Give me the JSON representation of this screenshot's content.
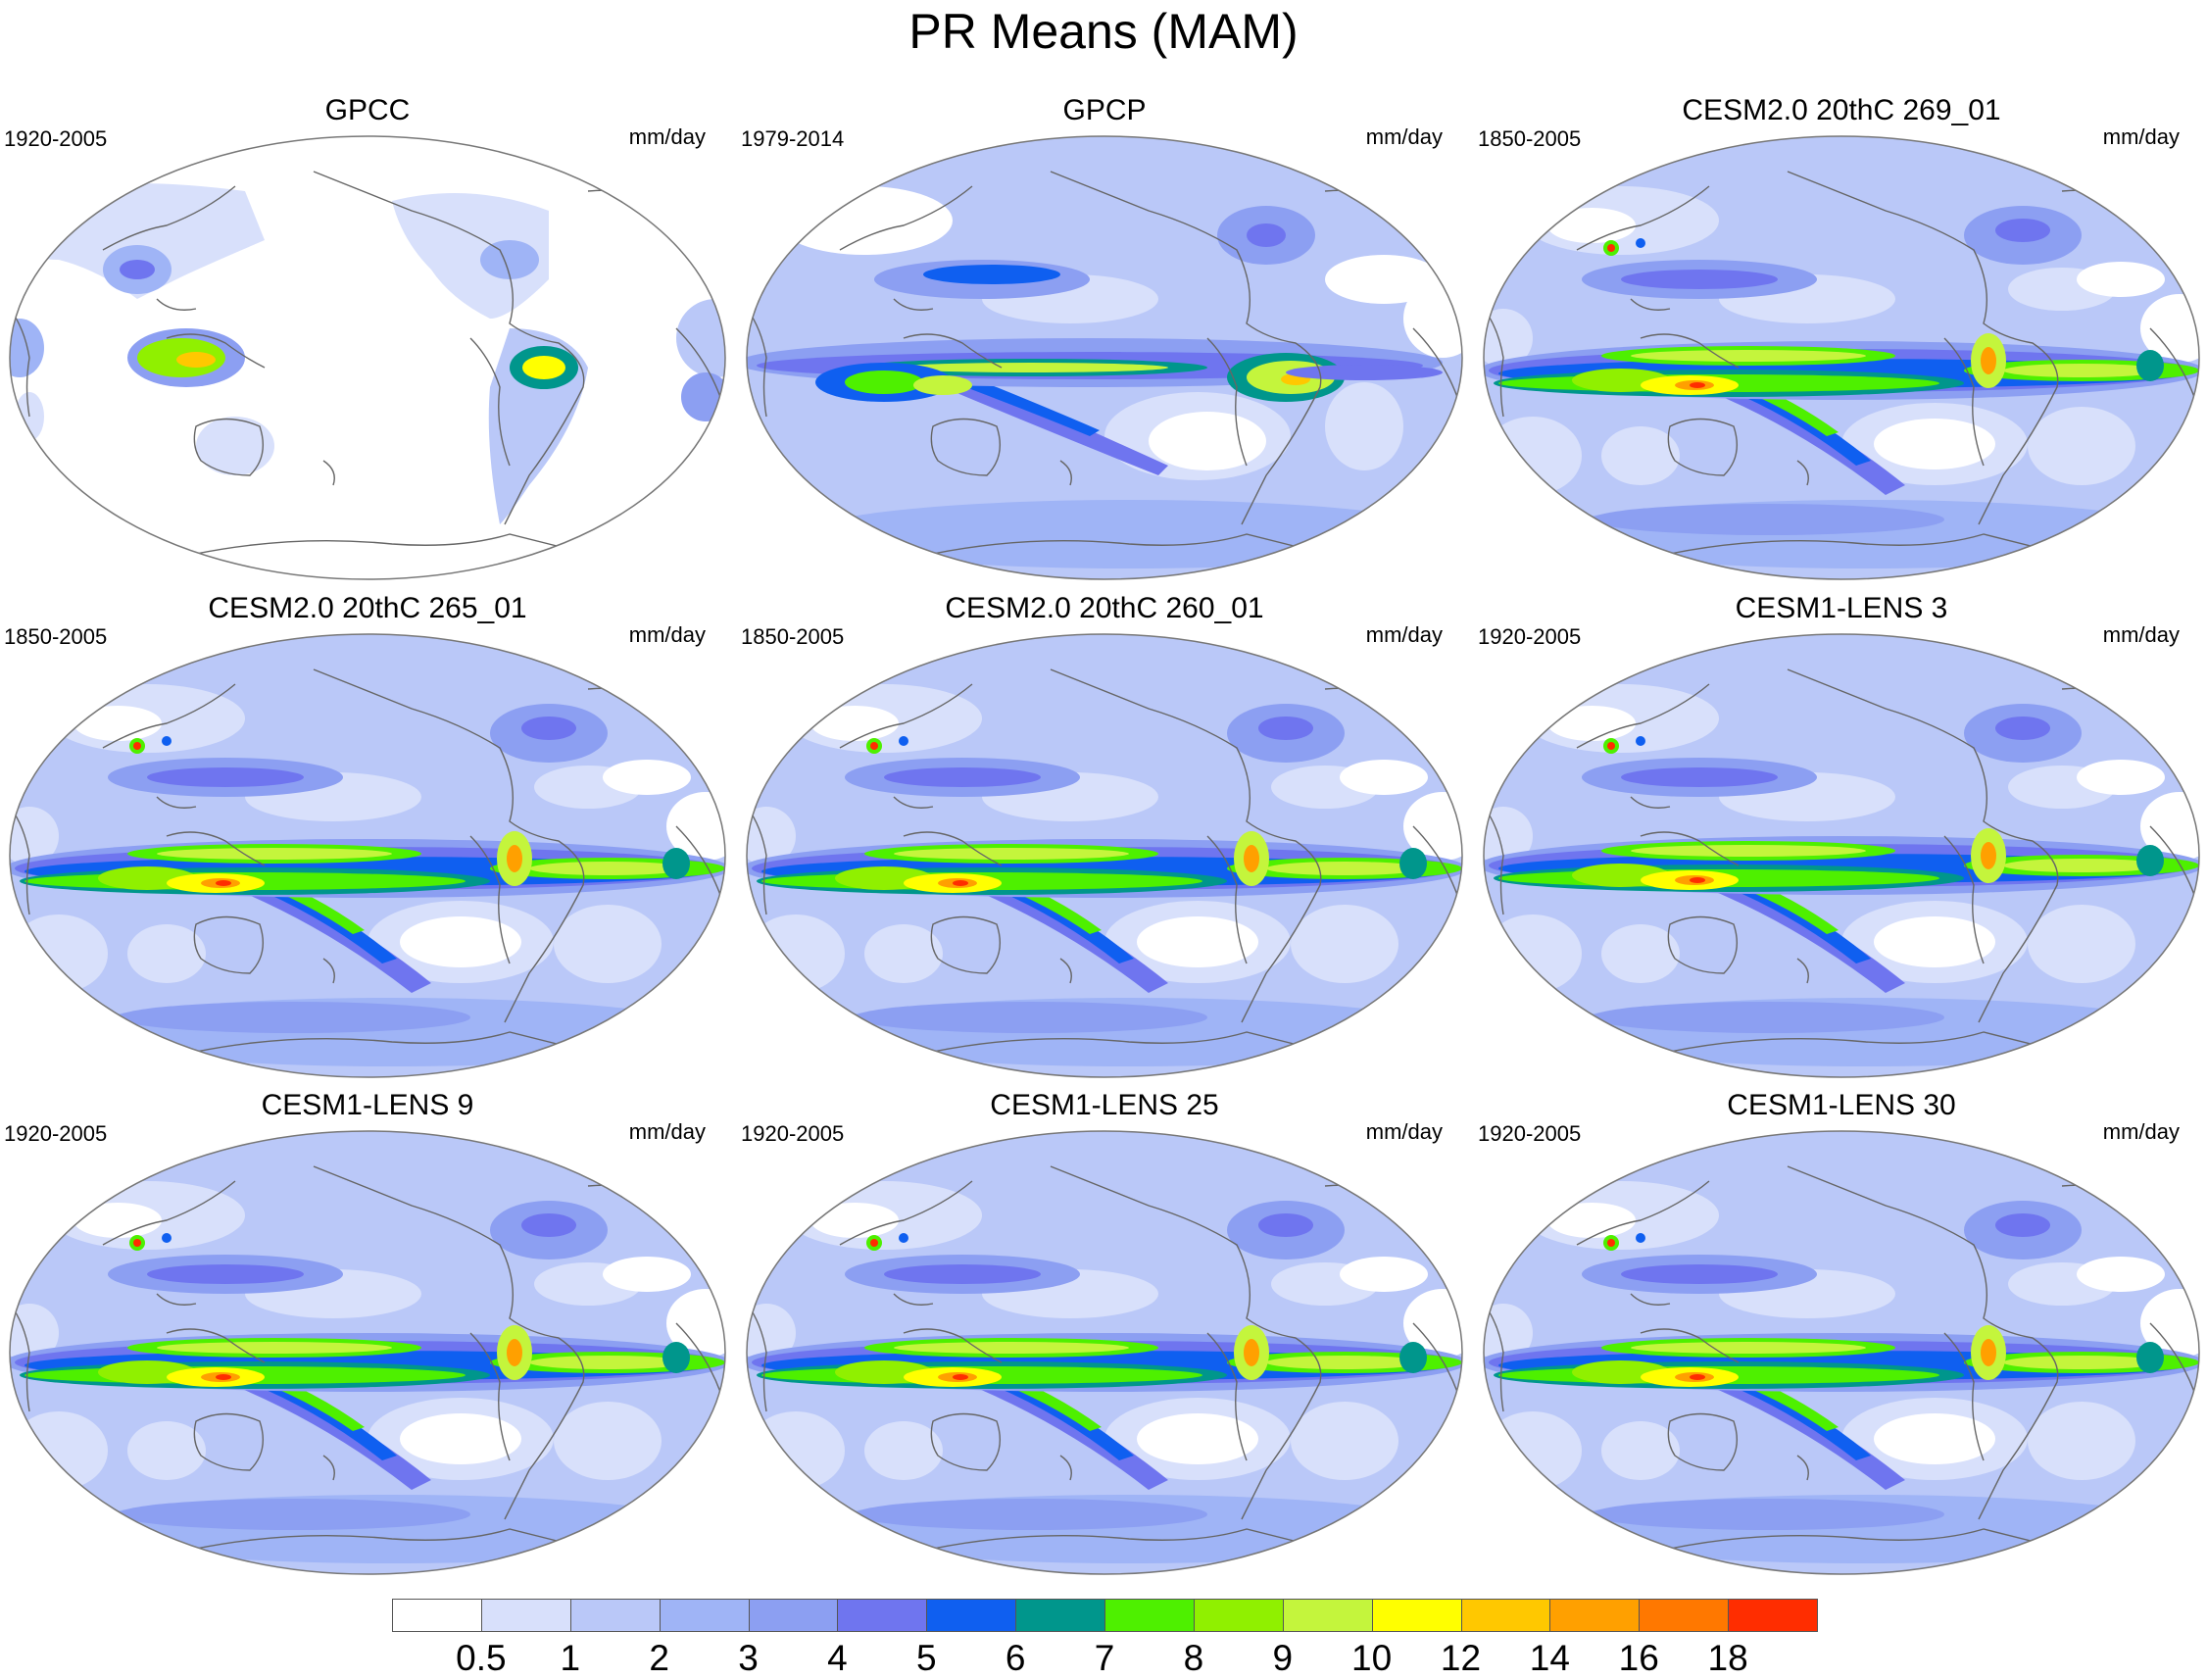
{
  "title": "PR Means (MAM)",
  "units": "mm/day",
  "panels": [
    {
      "title": "GPCC",
      "period": "1920-2005",
      "kind": "gpcc"
    },
    {
      "title": "GPCP",
      "period": "1979-2014",
      "kind": "gpcp"
    },
    {
      "title": "CESM2.0 20thC 269_01",
      "period": "1850-2005",
      "kind": "model2"
    },
    {
      "title": "CESM2.0 20thC 265_01",
      "period": "1850-2005",
      "kind": "model2"
    },
    {
      "title": "CESM2.0 20thC 260_01",
      "period": "1850-2005",
      "kind": "model2"
    },
    {
      "title": "CESM1-LENS 3",
      "period": "1920-2005",
      "kind": "model1"
    },
    {
      "title": "CESM1-LENS 9",
      "period": "1920-2005",
      "kind": "model1"
    },
    {
      "title": "CESM1-LENS 25",
      "period": "1920-2005",
      "kind": "model1"
    },
    {
      "title": "CESM1-LENS 30",
      "period": "1920-2005",
      "kind": "model1"
    }
  ],
  "colorbar": {
    "colors": [
      "#ffffff",
      "#d8e0fb",
      "#bac8f8",
      "#9fb4f6",
      "#8c9ff2",
      "#6f75ef",
      "#0f5ff0",
      "#00968c",
      "#4ef000",
      "#90f000",
      "#c4f53c",
      "#ffff00",
      "#ffc800",
      "#ffa000",
      "#ff7800",
      "#ff2d00"
    ],
    "labels": [
      "0.5",
      "1",
      "2",
      "3",
      "4",
      "5",
      "6",
      "7",
      "8",
      "9",
      "10",
      "12",
      "14",
      "16",
      "18"
    ]
  }
}
